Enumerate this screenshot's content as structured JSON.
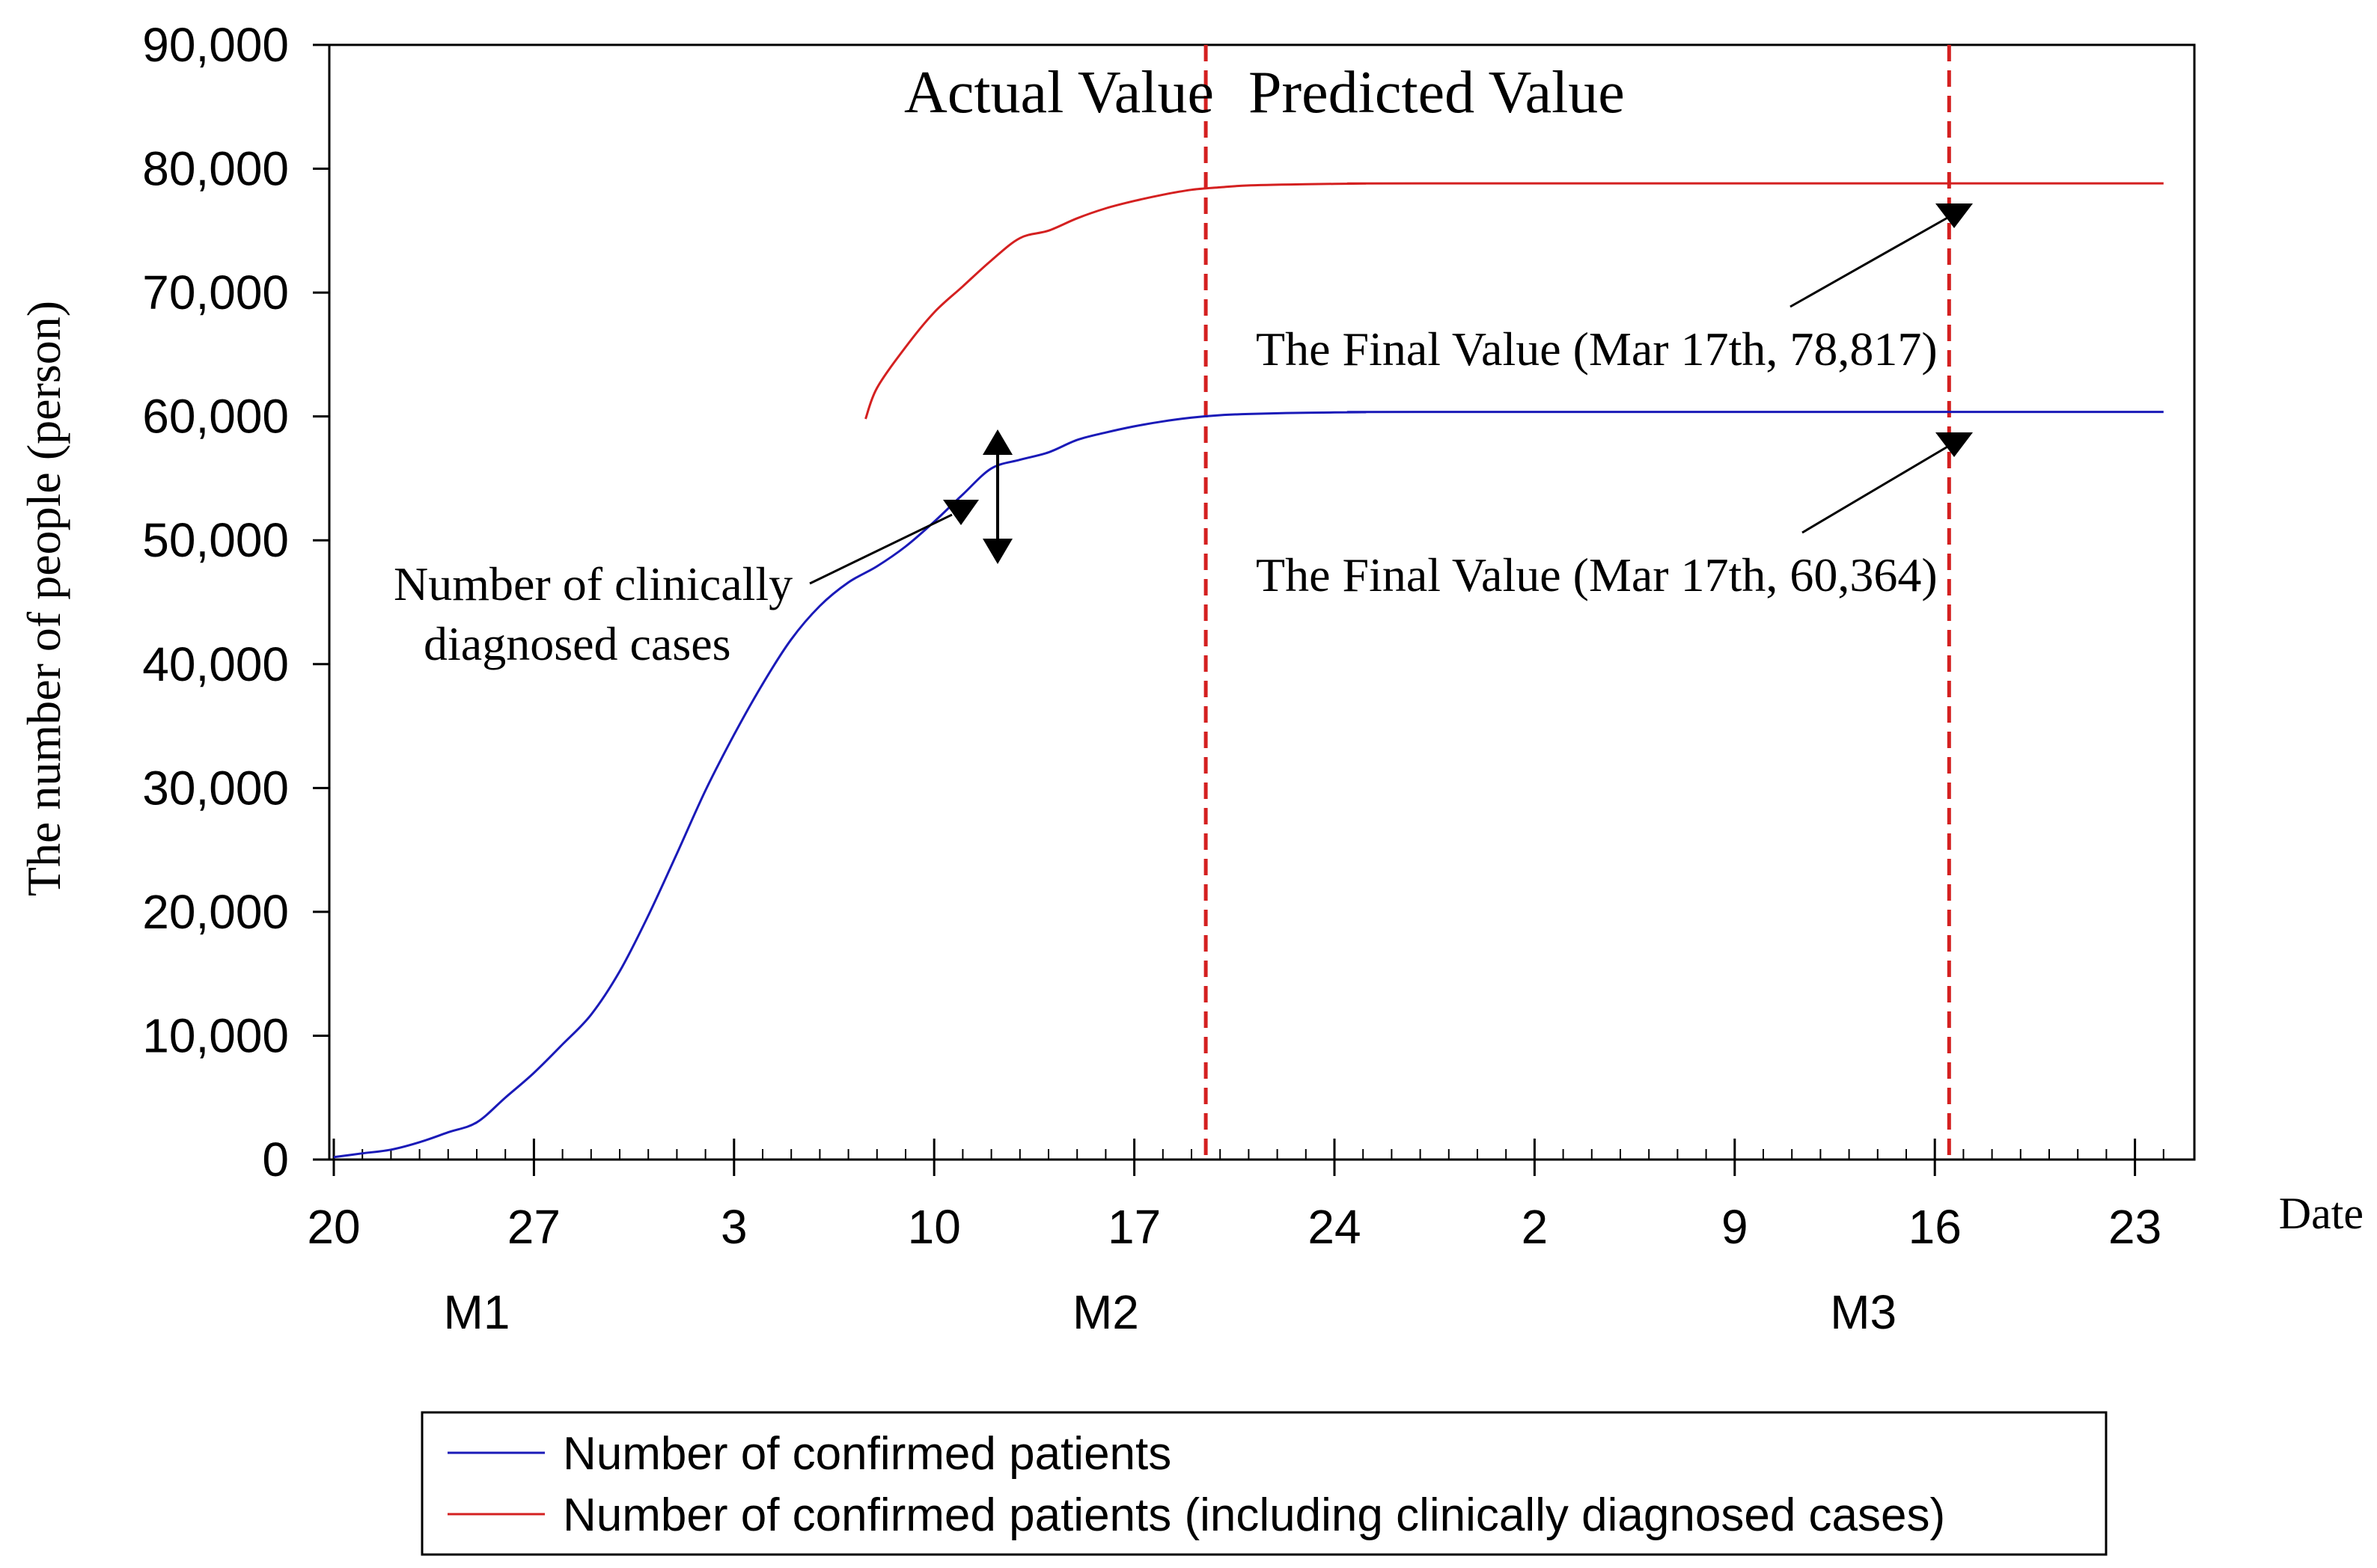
{
  "chart_data": {
    "type": "line",
    "title": "",
    "xlabel": "Date",
    "ylabel": "The number of people (person)",
    "ylim": [
      0,
      90000
    ],
    "xlim": [
      0,
      64
    ],
    "y_ticks": [
      0,
      10000,
      20000,
      30000,
      40000,
      50000,
      60000,
      70000,
      80000,
      90000
    ],
    "y_tick_labels": [
      "0",
      "10,000",
      "20,000",
      "30,000",
      "40,000",
      "50,000",
      "60,000",
      "70,000",
      "80,000",
      "90,000"
    ],
    "x_ticks": [
      {
        "day": 0,
        "label": "20"
      },
      {
        "day": 7,
        "label": "27"
      },
      {
        "day": 14,
        "label": "3"
      },
      {
        "day": 21,
        "label": "10"
      },
      {
        "day": 28,
        "label": "17"
      },
      {
        "day": 35,
        "label": "24"
      },
      {
        "day": 42,
        "label": "2"
      },
      {
        "day": 49,
        "label": "9"
      },
      {
        "day": 56,
        "label": "16"
      },
      {
        "day": 63,
        "label": "23"
      }
    ],
    "month_labels": [
      {
        "day": 5,
        "label": "M1"
      },
      {
        "day": 27,
        "label": "M2"
      },
      {
        "day": 53.5,
        "label": "M3"
      }
    ],
    "series": [
      {
        "name": "Number of confirmed patients",
        "color": "#1a1ab8",
        "points": [
          [
            0,
            200
          ],
          [
            1,
            500
          ],
          [
            2,
            800
          ],
          [
            3,
            1400
          ],
          [
            4,
            2200
          ],
          [
            5,
            3000
          ],
          [
            6,
            5000
          ],
          [
            7,
            7000
          ],
          [
            8,
            9300
          ],
          [
            9,
            11700
          ],
          [
            10,
            15200
          ],
          [
            11,
            19700
          ],
          [
            12,
            24700
          ],
          [
            13,
            29800
          ],
          [
            14,
            34300
          ],
          [
            15,
            38400
          ],
          [
            16,
            42000
          ],
          [
            17,
            44700
          ],
          [
            18,
            46600
          ],
          [
            19,
            47900
          ],
          [
            20,
            49500
          ],
          [
            21,
            51500
          ],
          [
            22,
            53700
          ],
          [
            23,
            55800
          ],
          [
            24,
            56500
          ],
          [
            25,
            57100
          ],
          [
            26,
            58100
          ],
          [
            27,
            58700
          ],
          [
            28,
            59200
          ],
          [
            29,
            59600
          ],
          [
            30,
            59900
          ],
          [
            31,
            60100
          ],
          [
            32,
            60200
          ],
          [
            34,
            60300
          ],
          [
            36,
            60340
          ],
          [
            38,
            60364
          ],
          [
            64,
            60364
          ]
        ]
      },
      {
        "name": "Number of confirmed patients (including clinically diagnosed cases)",
        "color": "#d42020",
        "points": [
          [
            18.6,
            59800
          ],
          [
            19,
            62300
          ],
          [
            20,
            65600
          ],
          [
            21,
            68400
          ],
          [
            22,
            70500
          ],
          [
            23,
            72600
          ],
          [
            24,
            74400
          ],
          [
            25,
            75000
          ],
          [
            26,
            76000
          ],
          [
            27,
            76800
          ],
          [
            28,
            77400
          ],
          [
            29,
            77900
          ],
          [
            30,
            78300
          ],
          [
            31,
            78500
          ],
          [
            32,
            78650
          ],
          [
            34,
            78750
          ],
          [
            36,
            78800
          ],
          [
            38,
            78817
          ],
          [
            64,
            78817
          ]
        ]
      }
    ],
    "reference_lines": [
      {
        "day": 30.5,
        "color": "#d42020",
        "style": "dashed"
      },
      {
        "day": 56.5,
        "color": "#d42020",
        "style": "dashed"
      }
    ],
    "region_labels": {
      "actual": "Actual Value",
      "predicted": "Predicted Value"
    },
    "annotations": [
      {
        "label": "The Final Value (Mar 17th, 78,817)"
      },
      {
        "label": "The Final Value (Mar 17th, 60,364)"
      },
      {
        "line1": "Number of clinically",
        "line2": "diagnosed cases"
      }
    ],
    "legend": {
      "placement": "bottom-center",
      "items": [
        {
          "label": "Number of confirmed patients",
          "color": "#1a1ab8"
        },
        {
          "label": "Number of confirmed patients (including clinically diagnosed cases)",
          "color": "#d42020"
        }
      ]
    }
  }
}
